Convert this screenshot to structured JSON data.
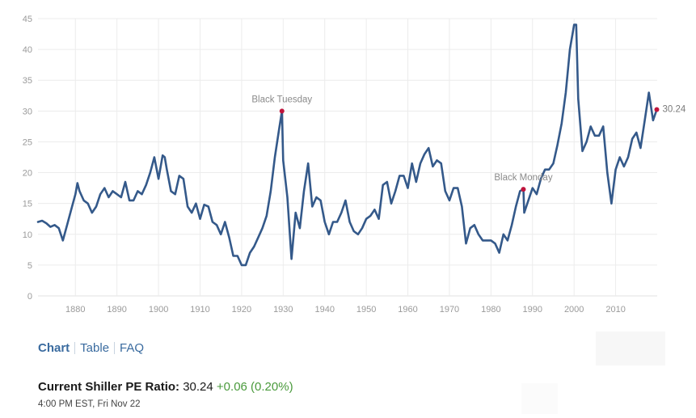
{
  "chart_data": {
    "type": "line",
    "xlim": [
      1871,
      2020
    ],
    "ylim": [
      0,
      45
    ],
    "x_ticks": [
      1880,
      1890,
      1900,
      1910,
      1920,
      1930,
      1940,
      1950,
      1960,
      1970,
      1980,
      1990,
      2000,
      2010
    ],
    "y_ticks": [
      0,
      5,
      10,
      15,
      20,
      25,
      30,
      35,
      40,
      45
    ],
    "grid": true,
    "line_color": "#34598a",
    "marker_color": "#c0143c",
    "annotations": [
      {
        "label": "Black Tuesday",
        "x": 1929.7,
        "y": 30.0
      },
      {
        "label": "Black Monday",
        "x": 1987.8,
        "y": 17.3
      }
    ],
    "end_label": {
      "text": "30.24",
      "x": 2019.9,
      "y": 30.24
    },
    "series": [
      {
        "x": [
          1871,
          1872,
          1873,
          1874,
          1875,
          1876,
          1877,
          1878,
          1879,
          1880,
          1880.5,
          1881,
          1882,
          1883,
          1884,
          1885,
          1886,
          1887,
          1888,
          1889,
          1890,
          1891,
          1892,
          1893,
          1894,
          1895,
          1896,
          1897,
          1898,
          1899,
          1900,
          1901,
          1901.5,
          1902,
          1903,
          1904,
          1905,
          1906,
          1907,
          1908,
          1909,
          1910,
          1911,
          1912,
          1913,
          1914,
          1915,
          1916,
          1917,
          1918,
          1919,
          1920,
          1921,
          1922,
          1923,
          1924,
          1925,
          1926,
          1927,
          1928,
          1929,
          1929.7,
          1930,
          1931,
          1932,
          1933,
          1934,
          1935,
          1936,
          1937,
          1938,
          1939,
          1940,
          1941,
          1942,
          1943,
          1944,
          1945,
          1946,
          1947,
          1948,
          1949,
          1950,
          1951,
          1952,
          1953,
          1954,
          1955,
          1956,
          1957,
          1958,
          1959,
          1960,
          1961,
          1962,
          1963,
          1964,
          1965,
          1966,
          1967,
          1968,
          1969,
          1970,
          1971,
          1972,
          1973,
          1974,
          1975,
          1976,
          1977,
          1978,
          1979,
          1980,
          1981,
          1982,
          1983,
          1984,
          1985,
          1986,
          1987,
          1987.8,
          1988,
          1989,
          1990,
          1991,
          1992,
          1993,
          1994,
          1995,
          1996,
          1997,
          1998,
          1999,
          2000,
          2000.5,
          2001,
          2002,
          2003,
          2004,
          2005,
          2006,
          2007,
          2008,
          2009,
          2010,
          2011,
          2012,
          2013,
          2014,
          2015,
          2016,
          2017,
          2018,
          2019,
          2019.9
        ],
        "y": [
          12.0,
          12.2,
          11.8,
          11.2,
          11.5,
          11.0,
          9.0,
          11.5,
          14.0,
          16.5,
          18.3,
          17.0,
          15.5,
          15.0,
          13.5,
          14.5,
          16.5,
          17.5,
          16.0,
          17.0,
          16.5,
          16.0,
          18.5,
          15.5,
          15.5,
          17.0,
          16.5,
          18.0,
          20.0,
          22.5,
          19.0,
          22.8,
          22.5,
          20.5,
          17.0,
          16.5,
          19.5,
          19.0,
          14.5,
          13.5,
          15.0,
          12.5,
          14.8,
          14.5,
          12.0,
          11.5,
          10.0,
          12.0,
          9.5,
          6.5,
          6.5,
          5.0,
          5.0,
          7.0,
          8.0,
          9.5,
          11.0,
          13.0,
          17.0,
          22.5,
          27.0,
          30.0,
          22.0,
          16.0,
          6.0,
          13.5,
          11.0,
          17.0,
          21.5,
          14.5,
          16.0,
          15.5,
          12.0,
          10.0,
          12.0,
          12.0,
          13.5,
          15.5,
          12.0,
          10.5,
          10.0,
          11.0,
          12.5,
          13.0,
          14.0,
          12.5,
          18.0,
          18.5,
          15.0,
          17.0,
          19.5,
          19.5,
          17.5,
          21.5,
          18.5,
          21.5,
          23.0,
          24.0,
          21.0,
          22.0,
          21.5,
          17.0,
          15.5,
          17.5,
          17.5,
          14.5,
          8.5,
          11.0,
          11.5,
          10.0,
          9.0,
          9.0,
          9.0,
          8.5,
          7.0,
          10.0,
          9.0,
          11.5,
          14.5,
          17.0,
          17.3,
          13.5,
          15.5,
          17.5,
          16.5,
          19.0,
          20.5,
          20.5,
          21.5,
          24.5,
          28.0,
          33.0,
          40.0,
          44.0,
          44.0,
          32.0,
          23.5,
          25.0,
          27.5,
          26.0,
          26.0,
          27.5,
          20.0,
          15.0,
          20.5,
          22.5,
          21.0,
          22.5,
          25.5,
          26.5,
          24.0,
          28.5,
          33.0,
          28.5,
          30.24
        ]
      }
    ]
  },
  "tabs": {
    "chart": "Chart",
    "table": "Table",
    "faq": "FAQ"
  },
  "current": {
    "label": "Current Shiller PE Ratio:",
    "value": "30.24",
    "change": "+0.06 (0.20%)",
    "timestamp": "4:00 PM EST, Fri Nov 22"
  }
}
